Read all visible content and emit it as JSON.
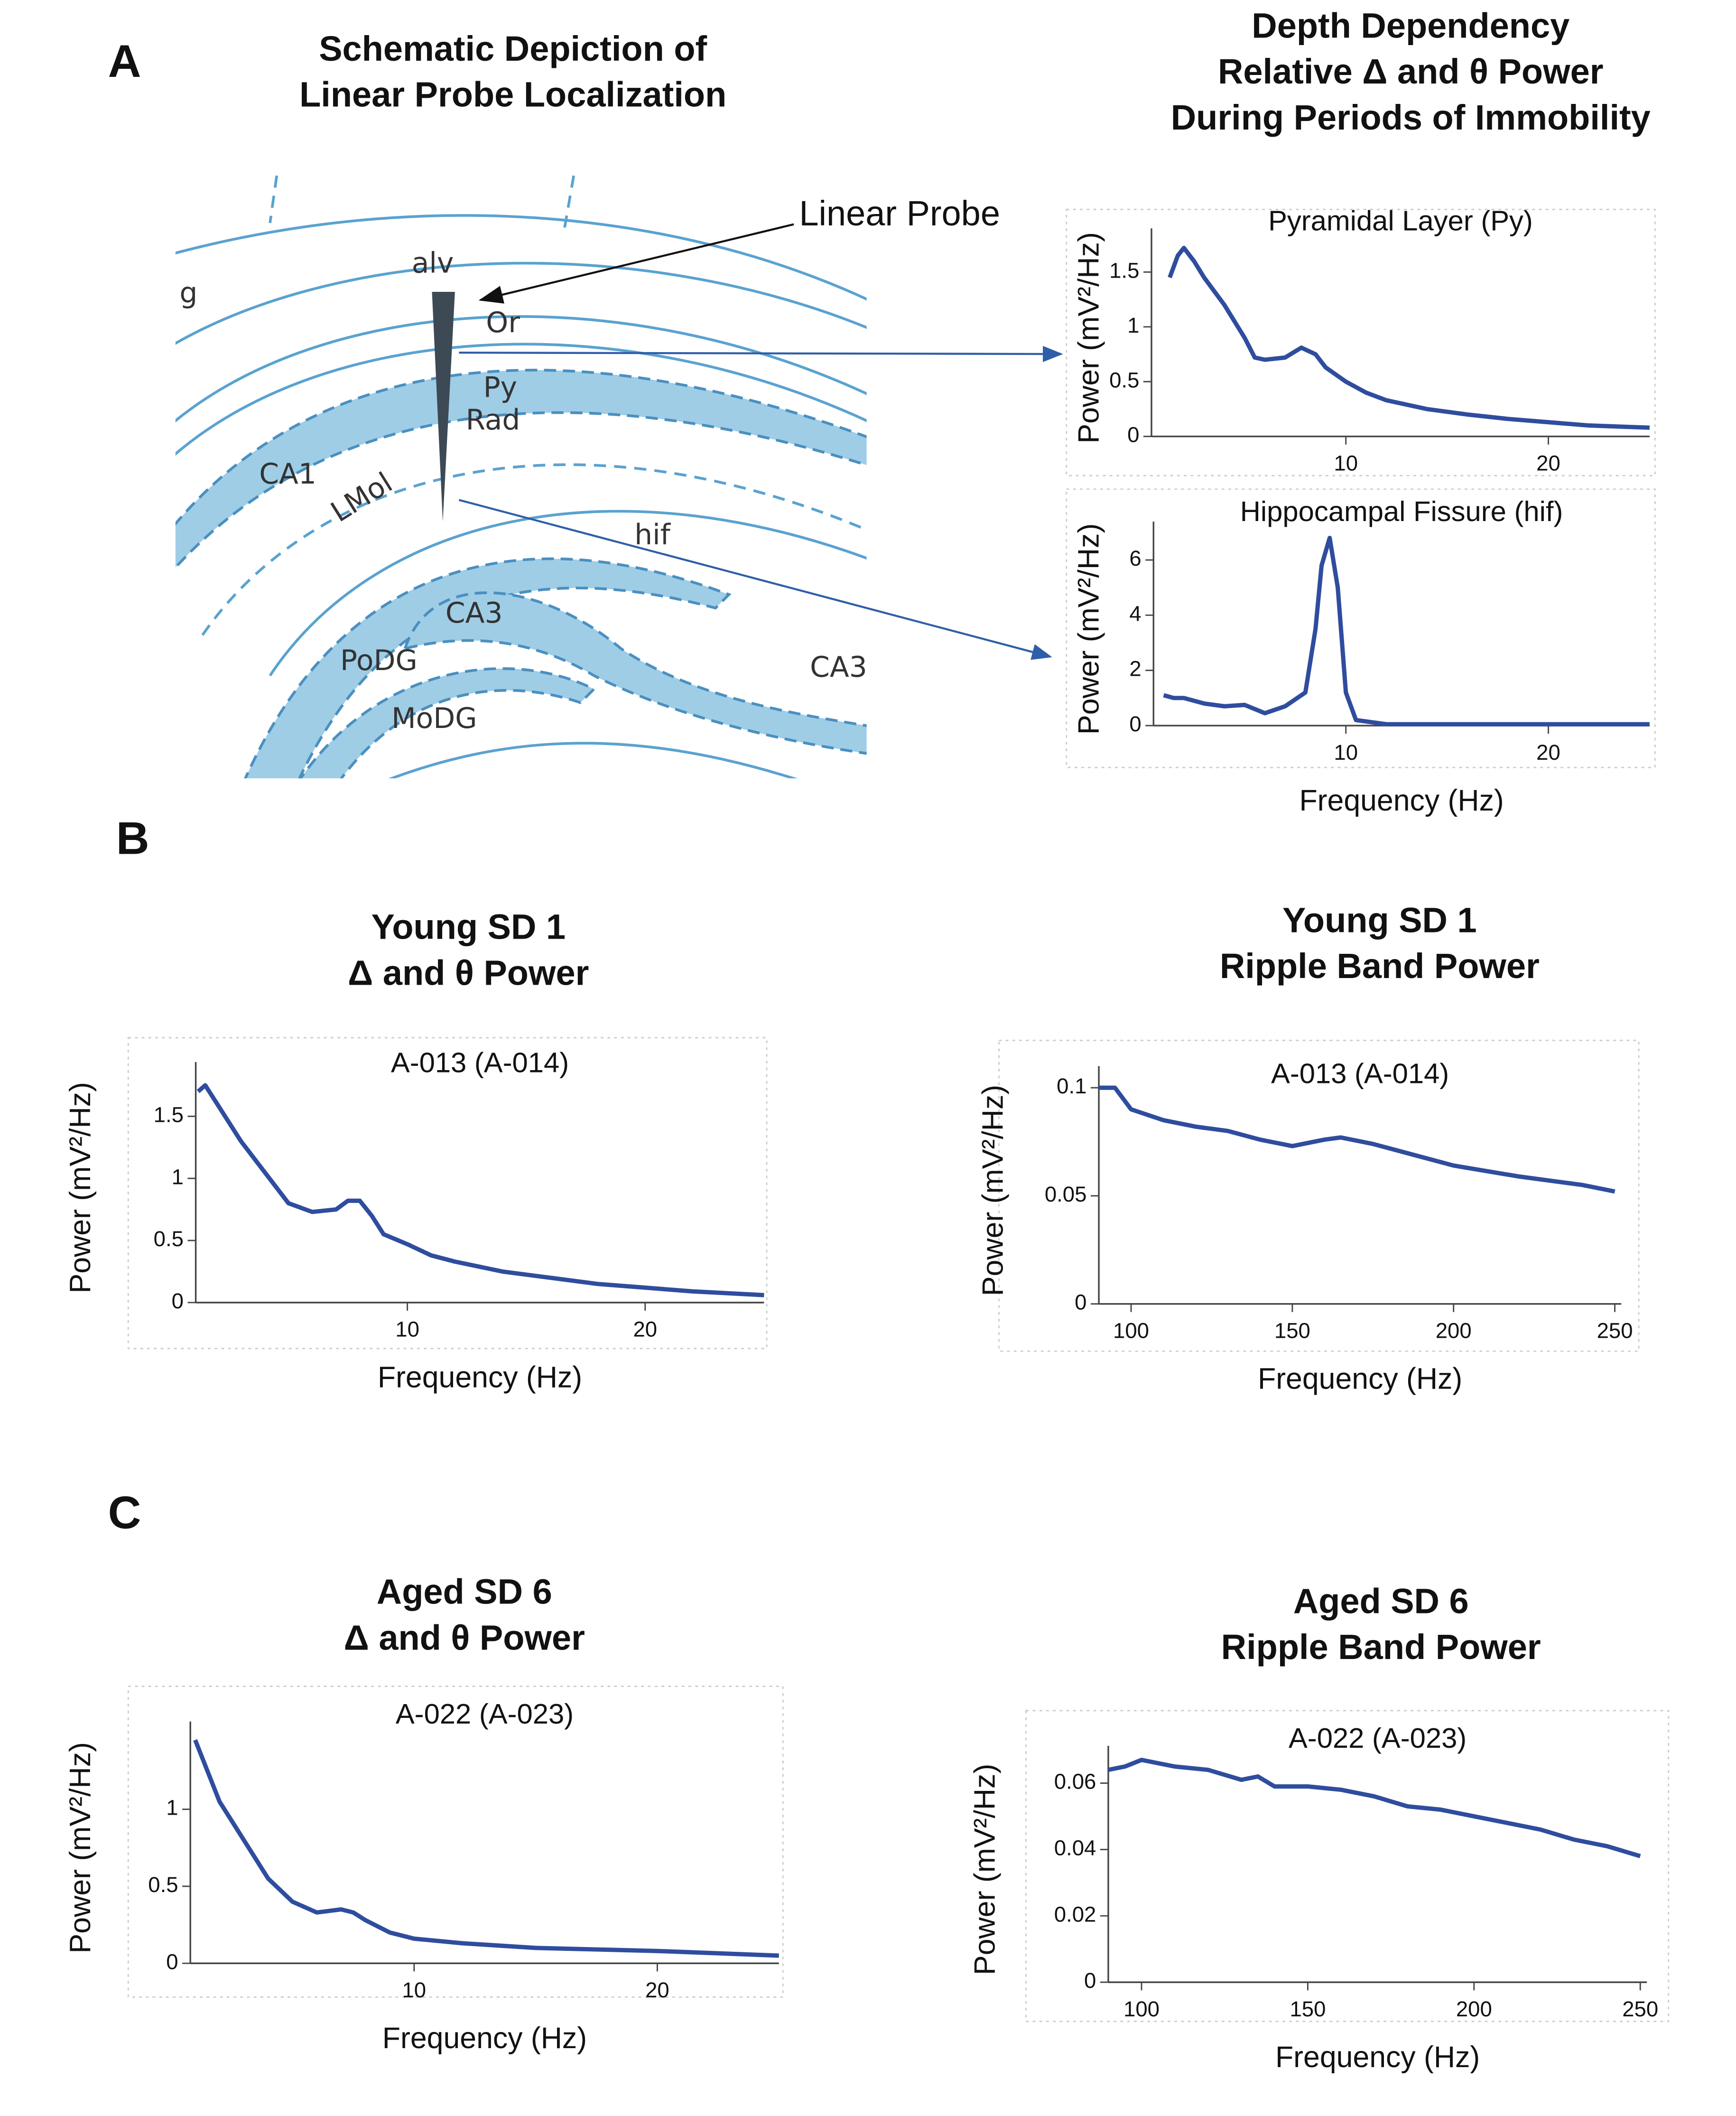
{
  "panels": [
    "A",
    "B",
    "C"
  ],
  "headings": [
    [
      "Schematic Depiction of",
      "Linear Probe Localization"
    ],
    [
      "Depth Dependency",
      "Relative Δ and θ Power",
      "During Periods of Immobility"
    ],
    [
      "Young SD 1",
      "Δ and θ Power"
    ],
    [
      "Young SD 1",
      "Ripple Band Power"
    ],
    [
      "Aged SD 6",
      "Δ and θ Power"
    ],
    [
      "Aged SD 6",
      "Ripple Band Power"
    ]
  ],
  "schematic": {
    "probe_label": "Linear Probe",
    "labels": [
      "g",
      "alv",
      "Or",
      "Py",
      "Rad",
      "CA1",
      "LMol",
      "hif",
      "CA3",
      "PoDG",
      "MoDG",
      "CA3"
    ]
  },
  "chart_data": [
    {
      "type": "line",
      "title": "Pyramidal Layer (Py)",
      "ylabel": "Power (mV²/Hz)",
      "color": "#2f4d9e",
      "x": [
        1.3,
        1.7,
        2,
        2.5,
        3,
        4,
        5,
        5.5,
        6,
        7,
        7.8,
        8.5,
        9,
        10,
        11,
        12,
        14,
        16,
        18,
        20,
        22,
        25
      ],
      "values": [
        1.45,
        1.65,
        1.72,
        1.6,
        1.45,
        1.2,
        0.9,
        0.72,
        0.7,
        0.72,
        0.81,
        0.75,
        0.63,
        0.5,
        0.4,
        0.33,
        0.25,
        0.2,
        0.16,
        0.13,
        0.1,
        0.08
      ],
      "xlim": [
        0.4,
        25
      ],
      "ylim": [
        0,
        1.8
      ],
      "xticks": [
        10,
        20
      ],
      "yticks": [
        0,
        0.5,
        1,
        1.5
      ]
    },
    {
      "type": "line",
      "title": "Hippocampal Fissure (hif)",
      "xlabel": "Frequency (Hz)",
      "ylabel": "Power (mV²/Hz)",
      "color": "#2f4d9e",
      "x": [
        1,
        1.5,
        2,
        3,
        4,
        5,
        6,
        7,
        8,
        8.5,
        8.8,
        9.2,
        9.6,
        10,
        10.5,
        12,
        15,
        20,
        25
      ],
      "values": [
        1.1,
        1.0,
        1.0,
        0.8,
        0.7,
        0.75,
        0.45,
        0.7,
        1.2,
        3.5,
        5.8,
        6.8,
        5,
        1.2,
        0.2,
        0.05,
        0.05,
        0.05,
        0.05
      ],
      "xlim": [
        0.5,
        25
      ],
      "ylim": [
        0,
        7
      ],
      "xticks": [
        10,
        20
      ],
      "yticks": [
        0,
        2,
        4,
        6
      ]
    },
    {
      "type": "line",
      "title": "A-013 (A-014)",
      "xlabel": "Frequency (Hz)",
      "ylabel": "Power (mV²/Hz)",
      "color": "#2f4d9e",
      "x": [
        1.2,
        1.5,
        2,
        3,
        4,
        5,
        6,
        7,
        7.5,
        8,
        8.5,
        9,
        10,
        11,
        12,
        14,
        16,
        18,
        20,
        22,
        25
      ],
      "values": [
        1.7,
        1.75,
        1.6,
        1.3,
        1.05,
        0.8,
        0.73,
        0.75,
        0.82,
        0.82,
        0.7,
        0.55,
        0.47,
        0.38,
        0.33,
        0.25,
        0.2,
        0.15,
        0.12,
        0.09,
        0.06
      ],
      "xlim": [
        1.1,
        25
      ],
      "ylim": [
        0,
        1.85
      ],
      "xticks": [
        10,
        20
      ],
      "yticks": [
        0,
        0.5,
        1,
        1.5
      ]
    },
    {
      "type": "line",
      "title": "A-013 (A-014)",
      "xlabel": "Frequency (Hz)",
      "ylabel": "Power (mV²/Hz)",
      "color": "#2f4d9e",
      "x": [
        90,
        95,
        100,
        110,
        120,
        130,
        140,
        150,
        160,
        165,
        175,
        190,
        200,
        220,
        240,
        250
      ],
      "values": [
        0.1,
        0.1,
        0.09,
        0.085,
        0.082,
        0.08,
        0.076,
        0.073,
        0.076,
        0.077,
        0.074,
        0.068,
        0.064,
        0.059,
        0.055,
        0.052
      ],
      "xlim": [
        90,
        252
      ],
      "ylim": [
        0,
        0.105
      ],
      "xticks": [
        100,
        150,
        200,
        250
      ],
      "yticks": [
        0,
        0.05,
        0.1
      ]
    },
    {
      "type": "line",
      "title": "A-022 (A-023)",
      "xlabel": "Frequency (Hz)",
      "ylabel": "Power (mV²/Hz)",
      "color": "#2f4d9e",
      "x": [
        1,
        1.5,
        2,
        3,
        4,
        5,
        6,
        7,
        7.5,
        8,
        9,
        10,
        12,
        15,
        20,
        25
      ],
      "values": [
        1.45,
        1.25,
        1.05,
        0.8,
        0.55,
        0.4,
        0.33,
        0.35,
        0.33,
        0.28,
        0.2,
        0.16,
        0.13,
        0.1,
        0.08,
        0.05
      ],
      "xlim": [
        0.8,
        25
      ],
      "ylim": [
        0,
        1.5
      ],
      "xticks": [
        10,
        20
      ],
      "yticks": [
        0,
        0.5,
        1
      ]
    },
    {
      "type": "line",
      "title": "A-022 (A-023)",
      "xlabel": "Frequency (Hz)",
      "ylabel": "Power (mV²/Hz)",
      "color": "#2f4d9e",
      "x": [
        90,
        95,
        100,
        110,
        120,
        130,
        135,
        140,
        150,
        160,
        170,
        180,
        190,
        200,
        210,
        220,
        230,
        240,
        250
      ],
      "values": [
        0.064,
        0.065,
        0.067,
        0.065,
        0.064,
        0.061,
        0.062,
        0.059,
        0.059,
        0.058,
        0.056,
        0.053,
        0.052,
        0.05,
        0.048,
        0.046,
        0.043,
        0.041,
        0.038
      ],
      "xlim": [
        90,
        252
      ],
      "ylim": [
        0,
        0.068
      ],
      "xticks": [
        100,
        150,
        200,
        250
      ],
      "yticks": [
        0,
        0.02,
        0.04,
        0.06
      ]
    }
  ]
}
